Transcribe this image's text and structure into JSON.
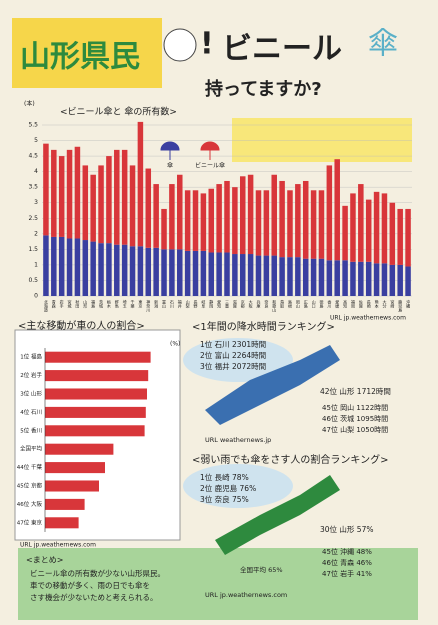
{
  "header": {
    "title_left": "山形県民",
    "title_mark": "!",
    "title_right": "ビニール",
    "title_kanji": "傘",
    "subtitle": "持ってますか?"
  },
  "chart_data": [
    {
      "type": "stacked-bar",
      "title": "<ビニール傘と 傘の所有数>",
      "y_label": "(本)",
      "categories": [
        "北海道",
        "青森",
        "岩手",
        "宮城",
        "秋田",
        "山形",
        "福島",
        "茨城",
        "栃木",
        "群馬",
        "埼玉",
        "千葉",
        "東京",
        "神奈川",
        "新潟",
        "富山",
        "石川",
        "福井",
        "山梨",
        "長野",
        "岐阜",
        "静岡",
        "愛知",
        "三重",
        "滋賀",
        "京都",
        "大阪",
        "兵庫",
        "奈良",
        "和歌山",
        "鳥取",
        "島根",
        "岡山",
        "広島",
        "山口",
        "徳島",
        "香川",
        "愛媛",
        "高知",
        "福岡",
        "佐賀",
        "長崎",
        "熊本",
        "大分",
        "宮崎",
        "鹿児島",
        "沖縄"
      ],
      "series": [
        {
          "name": "傘",
          "color": "#3a3fa0",
          "values": [
            1.95,
            1.9,
            1.9,
            1.85,
            1.85,
            1.8,
            1.75,
            1.7,
            1.7,
            1.65,
            1.65,
            1.6,
            1.6,
            1.55,
            1.55,
            1.5,
            1.5,
            1.5,
            1.45,
            1.45,
            1.45,
            1.4,
            1.4,
            1.4,
            1.35,
            1.35,
            1.35,
            1.3,
            1.3,
            1.3,
            1.25,
            1.25,
            1.25,
            1.2,
            1.2,
            1.2,
            1.15,
            1.15,
            1.15,
            1.1,
            1.1,
            1.1,
            1.05,
            1.05,
            1.0,
            1.0,
            0.95
          ]
        },
        {
          "name": "ビニール傘",
          "color": "#d8363a",
          "values": [
            2.95,
            2.8,
            2.6,
            2.85,
            2.95,
            2.4,
            2.15,
            2.5,
            2.8,
            3.05,
            3.05,
            2.6,
            4.0,
            2.55,
            2.05,
            1.3,
            2.1,
            2.4,
            1.95,
            1.95,
            1.85,
            2.05,
            2.2,
            2.3,
            2.15,
            2.5,
            2.55,
            2.1,
            2.1,
            2.6,
            2.45,
            2.15,
            2.35,
            2.5,
            2.2,
            2.2,
            3.05,
            3.25,
            1.75,
            2.2,
            2.5,
            2.0,
            2.3,
            2.25,
            2.0,
            1.8,
            1.85
          ]
        }
      ],
      "ylim": [
        0,
        5.5
      ],
      "yticks": [
        0,
        0.5,
        1,
        1.5,
        2,
        2.5,
        3,
        3.5,
        4,
        4.5,
        5,
        5.5
      ],
      "grid": true
    },
    {
      "type": "horizontal-bar",
      "title": "<主な移動が車の人の割合>",
      "x_label": "(%)",
      "categories": [
        "1位 福島",
        "2位 岩手",
        "3位 山形",
        "4位 石川",
        "5位 香川",
        "全国平均",
        "44位 千葉",
        "45位 京都",
        "46位 大阪",
        "47位 東京"
      ],
      "values": [
        88,
        86,
        85,
        84,
        83,
        57,
        50,
        45,
        33,
        28
      ],
      "color": "#d8363a",
      "xlim": [
        0,
        100
      ]
    }
  ],
  "rain": {
    "title": "<1年間の降水時間ランキング>",
    "top": [
      "1位 石川 2301時間",
      "2位 富山 2264時間",
      "3位 福井 2072時間"
    ],
    "mid": "42位 山形 1712時間",
    "bottom": [
      "45位 岡山 1122時間",
      "46位 茨城 1095時間",
      "47位 山梨 1050時間"
    ],
    "source": "URL weathernews.jp"
  },
  "light": {
    "title": "<弱い雨でも傘をさす人の割合ランキング>",
    "top": [
      "1位 長崎 78%",
      "2位 鹿児島 76%",
      "3位 奈良 75%"
    ],
    "mid": "30位 山形 57%",
    "avg": "全国平均 65%",
    "bottom": [
      "45位 沖縄 48%",
      "46位 青森 46%",
      "47位 岩手 41%"
    ],
    "source": "URL jp.weathernews.com"
  },
  "sources": {
    "chart1": "URL jp.weathernews.com",
    "chart2": "URL jp.weathernews.com"
  },
  "summary": {
    "title": "<まとめ>",
    "lines": [
      "ビニール傘の所有数が少ない山形県民。",
      "車での移動が多く、雨の日でも傘を",
      "さす機会が少ないためと考えられる。"
    ]
  }
}
